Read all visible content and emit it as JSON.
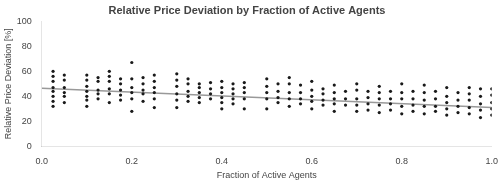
{
  "chart_data": {
    "type": "scatter",
    "title": "Relative Price Deviation by Fraction of Active Agents",
    "xlabel": "Fraction of Active Agents",
    "ylabel": "Relative Price Deviation [%]",
    "xlim": [
      0.0,
      1.0
    ],
    "ylim": [
      0,
      100
    ],
    "xticks": [
      {
        "value": 0.0,
        "label": "0.0"
      },
      0.2,
      0.4,
      0.6,
      0.8,
      {
        "value": 1.0,
        "label": "1.0"
      }
    ],
    "yticks": [
      0,
      20,
      40,
      60,
      80,
      100
    ],
    "grid": false,
    "series": [
      {
        "type": "scatter",
        "color": "#1a1a1a",
        "x": [
          0.025,
          0.025,
          0.025,
          0.025,
          0.025,
          0.025,
          0.025,
          0.025,
          0.05,
          0.05,
          0.05,
          0.05,
          0.05,
          0.05,
          0.1,
          0.1,
          0.1,
          0.1,
          0.1,
          0.1,
          0.1,
          0.125,
          0.125,
          0.125,
          0.125,
          0.125,
          0.15,
          0.15,
          0.15,
          0.15,
          0.15,
          0.15,
          0.175,
          0.175,
          0.175,
          0.175,
          0.175,
          0.2,
          0.2,
          0.2,
          0.2,
          0.2,
          0.2,
          0.225,
          0.225,
          0.225,
          0.225,
          0.225,
          0.25,
          0.25,
          0.25,
          0.25,
          0.25,
          0.25,
          0.3,
          0.3,
          0.3,
          0.3,
          0.3,
          0.3,
          0.325,
          0.325,
          0.325,
          0.325,
          0.325,
          0.35,
          0.35,
          0.35,
          0.35,
          0.35,
          0.375,
          0.375,
          0.375,
          0.375,
          0.4,
          0.4,
          0.4,
          0.4,
          0.4,
          0.4,
          0.425,
          0.425,
          0.425,
          0.425,
          0.425,
          0.45,
          0.45,
          0.45,
          0.45,
          0.45,
          0.5,
          0.5,
          0.5,
          0.5,
          0.5,
          0.525,
          0.525,
          0.525,
          0.525,
          0.55,
          0.55,
          0.55,
          0.55,
          0.55,
          0.575,
          0.575,
          0.575,
          0.575,
          0.6,
          0.6,
          0.6,
          0.6,
          0.6,
          0.625,
          0.625,
          0.625,
          0.625,
          0.65,
          0.65,
          0.65,
          0.65,
          0.65,
          0.675,
          0.675,
          0.675,
          0.7,
          0.7,
          0.7,
          0.7,
          0.7,
          0.725,
          0.725,
          0.725,
          0.725,
          0.75,
          0.75,
          0.75,
          0.75,
          0.75,
          0.775,
          0.775,
          0.775,
          0.775,
          0.8,
          0.8,
          0.8,
          0.8,
          0.8,
          0.825,
          0.825,
          0.825,
          0.825,
          0.85,
          0.85,
          0.85,
          0.85,
          0.85,
          0.875,
          0.875,
          0.875,
          0.875,
          0.9,
          0.9,
          0.9,
          0.9,
          0.9,
          0.925,
          0.925,
          0.925,
          0.925,
          0.95,
          0.95,
          0.95,
          0.95,
          0.95,
          0.975,
          0.975,
          0.975,
          0.975,
          0.975,
          1.0,
          1.0,
          1.0,
          1.0,
          1.0
        ],
        "values": [
          60,
          56,
          52,
          47,
          44,
          40,
          36,
          32,
          57,
          53,
          47,
          43,
          40,
          35,
          57,
          53,
          48,
          44,
          40,
          37,
          32,
          55,
          52,
          45,
          42,
          38,
          60,
          56,
          52,
          46,
          42,
          35,
          54,
          50,
          45,
          41,
          37,
          67,
          54,
          47,
          43,
          38,
          28,
          55,
          50,
          45,
          42,
          36,
          57,
          52,
          47,
          43,
          38,
          31,
          58,
          53,
          48,
          42,
          37,
          31,
          54,
          50,
          44,
          40,
          36,
          50,
          47,
          43,
          39,
          35,
          51,
          46,
          42,
          38,
          52,
          47,
          43,
          39,
          35,
          30,
          50,
          46,
          42,
          38,
          34,
          51,
          47,
          43,
          38,
          30,
          54,
          48,
          43,
          38,
          30,
          50,
          44,
          39,
          35,
          55,
          50,
          43,
          38,
          32,
          49,
          43,
          38,
          34,
          52,
          45,
          40,
          36,
          30,
          46,
          42,
          37,
          33,
          49,
          43,
          38,
          34,
          28,
          44,
          38,
          33,
          50,
          45,
          38,
          33,
          28,
          44,
          39,
          34,
          29,
          48,
          43,
          38,
          33,
          27,
          44,
          38,
          34,
          29,
          50,
          43,
          38,
          32,
          26,
          44,
          38,
          33,
          28,
          49,
          43,
          37,
          32,
          26,
          44,
          38,
          32,
          28,
          47,
          40,
          35,
          30,
          25,
          43,
          37,
          32,
          27,
          47,
          42,
          37,
          31,
          26,
          46,
          40,
          34,
          29,
          23,
          46,
          41,
          35,
          30,
          25
        ]
      },
      {
        "type": "line",
        "color": "#999999",
        "x": [
          0.0,
          1.0
        ],
        "values": [
          46.5,
          31.0
        ]
      }
    ]
  }
}
